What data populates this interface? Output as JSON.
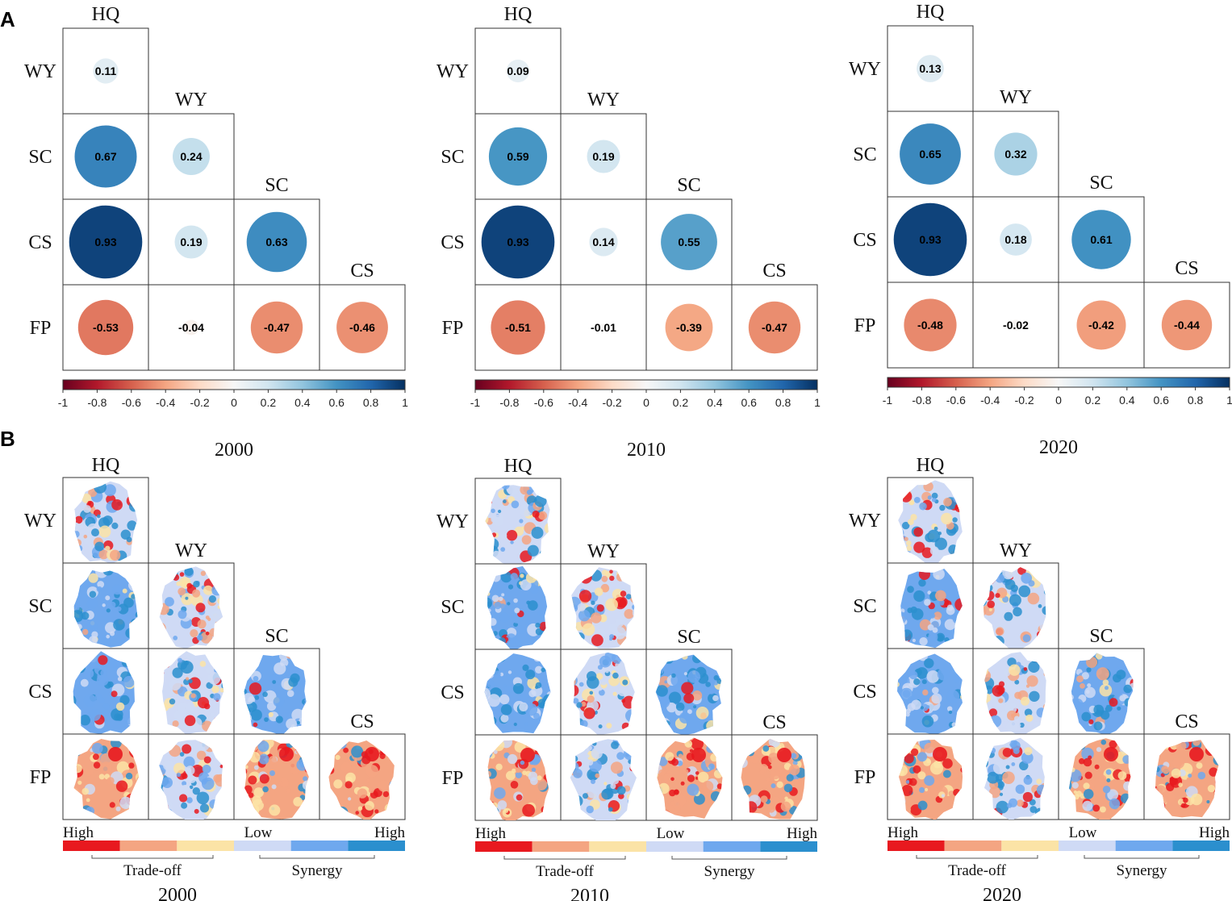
{
  "panel_labels": {
    "a": "A",
    "b": "B"
  },
  "colorbar": {
    "ticks": [
      "-1",
      "-0.8",
      "-0.6",
      "-0.4",
      "-0.2",
      "0",
      "0.2",
      "0.4",
      "0.6",
      "0.8",
      "1"
    ],
    "neg_color": "#67001f",
    "mid_color": "#f7f7f7",
    "pos_color": "#053061"
  },
  "legend_b": {
    "high_left": "High",
    "low": "Low",
    "high_right": "High",
    "tradeoff": "Trade-off",
    "synergy": "Synergy",
    "colors": [
      "#e8191f",
      "#f4a582",
      "#fbe3a6",
      "#cfdaf5",
      "#6fa8ee",
      "#2b8fce"
    ]
  },
  "chart_data": [
    {
      "type": "heatmap",
      "title": "2000",
      "columns": [
        "HQ",
        "WY",
        "SC",
        "CS"
      ],
      "rows": [
        "WY",
        "SC",
        "CS",
        "FP"
      ],
      "values": [
        [
          0.11
        ],
        [
          0.67,
          0.24
        ],
        [
          0.93,
          0.19,
          0.63
        ],
        [
          -0.53,
          -0.04,
          -0.47,
          -0.46
        ]
      ],
      "range": [
        -1,
        1
      ]
    },
    {
      "type": "heatmap",
      "title": "2010",
      "columns": [
        "HQ",
        "WY",
        "SC",
        "CS"
      ],
      "rows": [
        "WY",
        "SC",
        "CS",
        "FP"
      ],
      "values": [
        [
          0.09
        ],
        [
          0.59,
          0.19
        ],
        [
          0.93,
          0.14,
          0.55
        ],
        [
          -0.51,
          -0.01,
          -0.39,
          -0.47
        ]
      ],
      "range": [
        -1,
        1
      ]
    },
    {
      "type": "heatmap",
      "title": "2020",
      "columns": [
        "HQ",
        "WY",
        "SC",
        "CS"
      ],
      "rows": [
        "WY",
        "SC",
        "CS",
        "FP"
      ],
      "values": [
        [
          0.13
        ],
        [
          0.65,
          0.32
        ],
        [
          0.93,
          0.18,
          0.61
        ],
        [
          -0.48,
          -0.02,
          -0.42,
          -0.44
        ]
      ],
      "range": [
        -1,
        1
      ]
    }
  ],
  "map_panels": [
    {
      "title": "2000",
      "columns": [
        "HQ",
        "WY",
        "SC",
        "CS"
      ],
      "rows": [
        "WY",
        "SC",
        "CS",
        "FP"
      ]
    },
    {
      "title": "2010",
      "columns": [
        "HQ",
        "WY",
        "SC",
        "CS"
      ],
      "rows": [
        "WY",
        "SC",
        "CS",
        "FP"
      ]
    },
    {
      "title": "2020",
      "columns": [
        "HQ",
        "WY",
        "SC",
        "CS"
      ],
      "rows": [
        "WY",
        "SC",
        "CS",
        "FP"
      ]
    }
  ]
}
